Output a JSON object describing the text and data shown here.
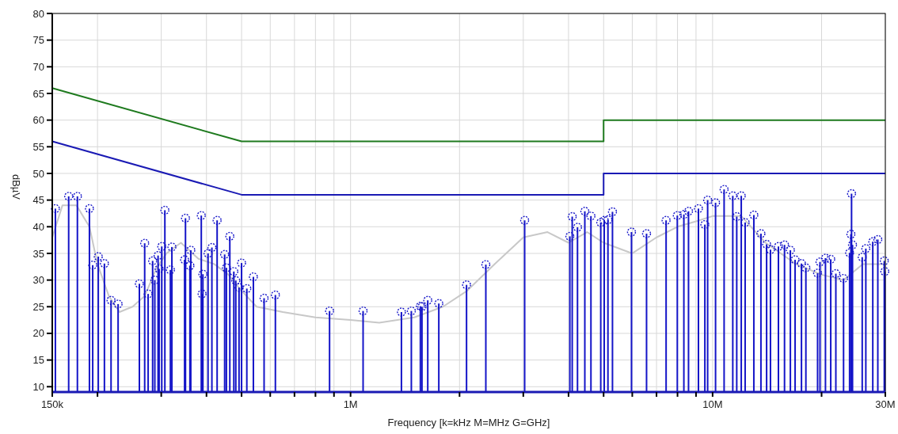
{
  "chart_data": {
    "type": "lollipop",
    "xlabel": "Frequency [k=kHz M=MHz G=GHz]",
    "ylabel": "dBµV",
    "log": "x",
    "grid": true,
    "xlim": [
      150000,
      30000000
    ],
    "ylim": [
      9,
      80
    ],
    "xticks": [
      {
        "value": 150000,
        "label": "150k"
      },
      {
        "value": 200000,
        "label": null
      },
      {
        "value": 300000,
        "label": null
      },
      {
        "value": 400000,
        "label": null
      },
      {
        "value": 500000,
        "label": null
      },
      {
        "value": 600000,
        "label": null
      },
      {
        "value": 700000,
        "label": null
      },
      {
        "value": 800000,
        "label": null
      },
      {
        "value": 900000,
        "label": null
      },
      {
        "value": 1000000,
        "label": "1M"
      },
      {
        "value": 2000000,
        "label": null
      },
      {
        "value": 3000000,
        "label": null
      },
      {
        "value": 4000000,
        "label": null
      },
      {
        "value": 5000000,
        "label": null
      },
      {
        "value": 6000000,
        "label": null
      },
      {
        "value": 7000000,
        "label": null
      },
      {
        "value": 8000000,
        "label": null
      },
      {
        "value": 9000000,
        "label": null
      },
      {
        "value": 10000000,
        "label": "10M"
      },
      {
        "value": 20000000,
        "label": null
      },
      {
        "value": 30000000,
        "label": "30M"
      }
    ],
    "yticks": [
      10,
      15,
      20,
      25,
      30,
      35,
      40,
      45,
      50,
      55,
      60,
      65,
      70,
      75,
      80
    ],
    "series": [
      {
        "type": "line",
        "color": "#c8c8c8",
        "x": [
          150000,
          160000,
          175000,
          190000,
          200000,
          215000,
          230000,
          250000,
          270000,
          290000,
          310000,
          340000,
          380000,
          420000,
          460000,
          500000,
          550000,
          650000,
          800000,
          1000000,
          1200000,
          1500000,
          1800000,
          2100000,
          2500000,
          3000000,
          3500000,
          4000000,
          4500000,
          5000000,
          6000000,
          7000000,
          8000000,
          9000000,
          10000000,
          12000000,
          14000000,
          17000000,
          20000000,
          23000000,
          26000000,
          30000000
        ],
        "values": [
          38,
          44,
          44,
          40,
          33,
          27,
          24,
          25,
          27,
          32,
          35,
          37,
          34,
          33,
          31,
          28,
          25,
          24,
          23,
          22.5,
          22,
          23,
          25,
          28,
          33,
          38,
          39,
          37,
          39,
          37,
          35,
          38,
          40,
          41,
          42,
          42,
          37,
          33,
          31,
          30,
          33,
          33
        ]
      },
      {
        "color": "#1414c8",
        "marker": "circle",
        "x": [
          153000,
          166500,
          176000,
          190000,
          194000,
          201000,
          209000,
          218000,
          228000,
          261000,
          270000,
          276000,
          284000,
          288000,
          294000,
          296000,
          301000,
          307000,
          318000,
          321000,
          348000,
          350000,
          360000,
          362000,
          387000,
          389000,
          391000,
          404000,
          414000,
          428000,
          449000,
          454000,
          464000,
          476000,
          482000,
          492000,
          500000,
          517000,
          539000,
          577000,
          620000,
          875000,
          1083000,
          1382000,
          1472000,
          1559000,
          1575000,
          1634000,
          1753000,
          2091000,
          2364000,
          3026000,
          4034000,
          4095000,
          4235000,
          4437000,
          4613000,
          4910000,
          5020000,
          5140000,
          5290000,
          5970000,
          6570000,
          7440000,
          7990000,
          8330000,
          8580000,
          9140000,
          9520000,
          9690000,
          10190000,
          10760000,
          11370000,
          11660000,
          12000000,
          12300000,
          13000000,
          13600000,
          14100000,
          14450000,
          15200000,
          15800000,
          16400000,
          16900000,
          17600000,
          18100000,
          19500000,
          19800000,
          20500000,
          21200000,
          21900000,
          23000000,
          23900000,
          24100000,
          24200000,
          24350000,
          25900000,
          26500000,
          27700000,
          28600000,
          29800000,
          29900000
        ],
        "values": [
          43.4,
          45.7,
          45.7,
          43.4,
          32.8,
          34.4,
          33.1,
          26.2,
          25.5,
          29.3,
          36.9,
          27.4,
          33.6,
          30.0,
          34.6,
          32.1,
          36.3,
          43.1,
          31.9,
          36.2,
          33.8,
          41.6,
          32.7,
          35.6,
          42.1,
          27.4,
          31.1,
          35.0,
          36.1,
          41.2,
          34.8,
          32.3,
          38.2,
          31.6,
          29.9,
          28.6,
          33.2,
          28.4,
          30.6,
          26.6,
          27.2,
          24.2,
          24.2,
          24.0,
          24.2,
          25.1,
          25.0,
          26.2,
          25.6,
          29.1,
          32.9,
          41.2,
          38.2,
          41.9,
          39.9,
          42.9,
          42.0,
          40.8,
          41.2,
          41.3,
          42.8,
          39.0,
          38.7,
          41.2,
          42.1,
          42.3,
          42.9,
          43.4,
          40.4,
          45.0,
          44.5,
          47.0,
          45.8,
          41.9,
          45.8,
          40.8,
          42.2,
          38.7,
          36.7,
          35.7,
          36.3,
          36.6,
          35.6,
          33.8,
          33.1,
          32.3,
          31.3,
          33.4,
          34.1,
          33.9,
          31.2,
          30.3,
          35.1,
          38.6,
          46.2,
          36.6,
          34.3,
          35.9,
          37.2,
          37.6,
          33.6,
          31.6
        ]
      },
      {
        "type": "line",
        "color": "#1e7a1e",
        "x": [
          150000,
          500000,
          5000000,
          5000000,
          30000000
        ],
        "values": [
          66,
          56,
          56,
          60,
          60
        ]
      },
      {
        "type": "line",
        "color": "#1a1ab4",
        "x": [
          150000,
          500000,
          5000000,
          5000000,
          30000000
        ],
        "values": [
          56,
          46,
          46,
          50,
          50
        ]
      }
    ]
  }
}
